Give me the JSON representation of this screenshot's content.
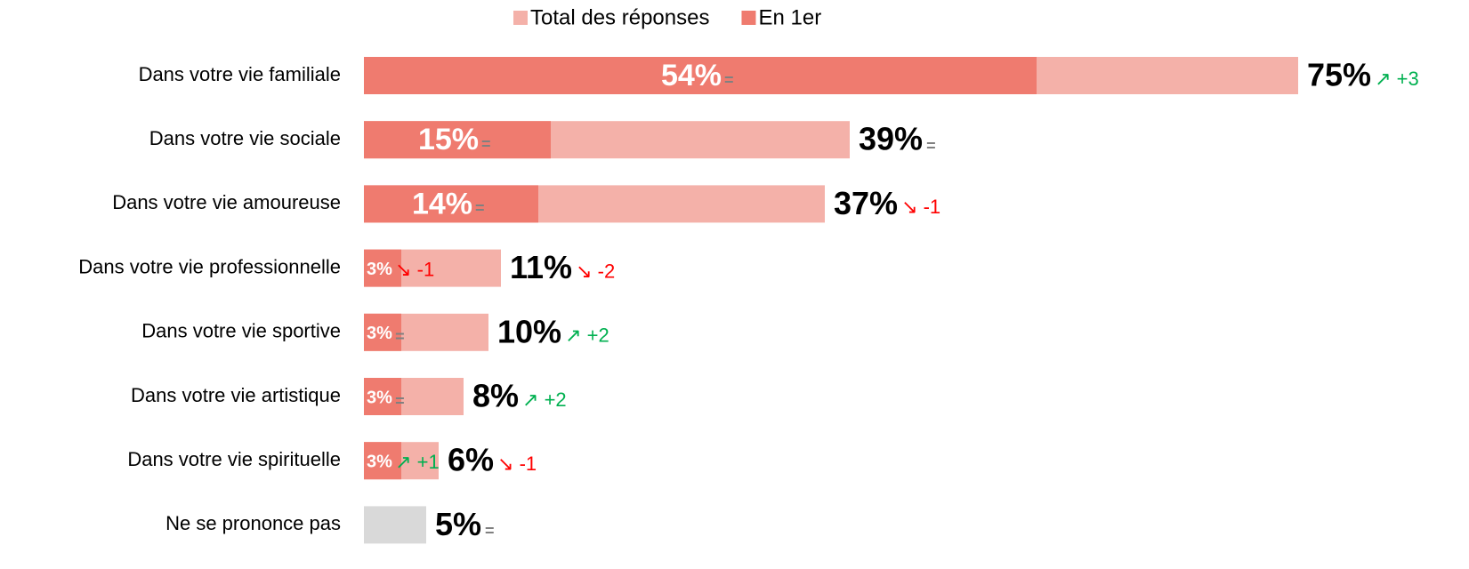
{
  "chart_data": {
    "type": "bar",
    "orientation": "horizontal",
    "categories": [
      "Dans votre vie familiale",
      "Dans votre vie sociale",
      "Dans votre vie amoureuse",
      "Dans votre vie professionnelle",
      "Dans votre vie sportive",
      "Dans votre vie artistique",
      "Dans votre vie spirituelle",
      "Ne se prononce pas"
    ],
    "series": [
      {
        "name": "Total des réponses",
        "color": "#f4b1a9",
        "colors": [
          "#f4b1a9",
          "#f4b1a9",
          "#f4b1a9",
          "#f4b1a9",
          "#f4b1a9",
          "#f4b1a9",
          "#f4b1a9",
          "#d9d9d9"
        ],
        "values": [
          75,
          39,
          37,
          11,
          10,
          8,
          6,
          5
        ],
        "value_labels": [
          "75%",
          "39%",
          "37%",
          "11%",
          "10%",
          "8%",
          "6%",
          "5%"
        ],
        "changes": [
          "↗ +3",
          "=",
          "↘ -1",
          "↘ -2",
          "↗ +2",
          "↗ +2",
          "↘ -1",
          "="
        ],
        "change_colors": [
          "#00b050",
          "#808080",
          "#ff0000",
          "#ff0000",
          "#00b050",
          "#00b050",
          "#ff0000",
          "#808080"
        ]
      },
      {
        "name": "En 1er",
        "color": "#ef7b6f",
        "values": [
          54,
          15,
          14,
          3,
          3,
          3,
          3,
          null
        ],
        "value_labels": [
          "54%",
          "15%",
          "14%",
          "3%",
          "3%",
          "3%",
          "3%",
          null
        ],
        "changes": [
          "=",
          "=",
          "=",
          "↘ -1",
          "=",
          "=",
          "↗ +1",
          null
        ],
        "change_colors": [
          "#808080",
          "#808080",
          "#808080",
          "#ff0000",
          "#808080",
          "#808080",
          "#00b050",
          null
        ]
      }
    ],
    "xlim": [
      0,
      75
    ],
    "legend": "top"
  }
}
